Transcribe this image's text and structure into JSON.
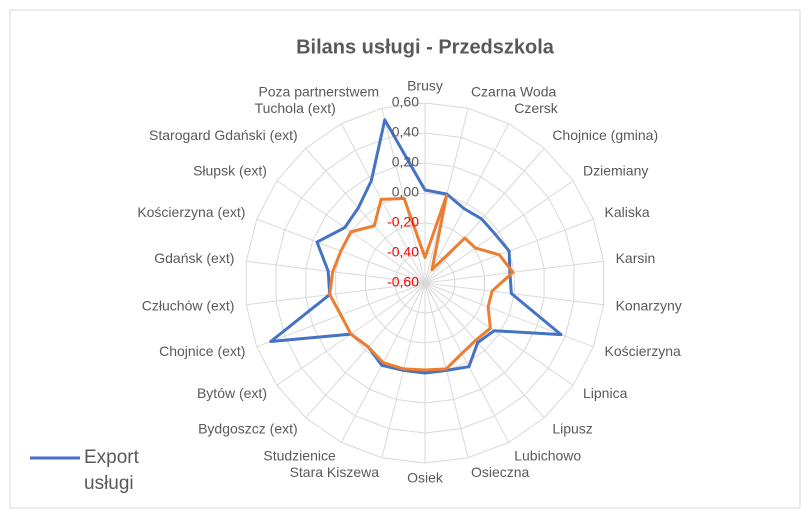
{
  "chart_data": {
    "type": "radar",
    "title": "Bilans usługi - Przedszkola",
    "categories": [
      "Brusy",
      "Czarna Woda",
      "Czersk",
      "Chojnice (gmina)",
      "Dziemiany",
      "Kaliska",
      "Karsin",
      "Konarzyny",
      "Kościerzyna",
      "Lipnica",
      "Lipusz",
      "Lubichowo",
      "Osieczna",
      "Osiek",
      "Stara Kiszewa",
      "Studzienice",
      "Bydgoszcz (ext)",
      "Bytów (ext)",
      "Chojnice (ext)",
      "Człuchów (ext)",
      "Gdańsk (ext)",
      "Kościerzyna (ext)",
      "Słupsk (ext)",
      "Starogard Gdański (ext)",
      "Tuchola (ext)",
      "Poza partnerstwem"
    ],
    "series": [
      {
        "name": "Export usługi",
        "color": "#4472c4",
        "values": [
          0.02,
          0.01,
          -0.04,
          -0.03,
          -0.03,
          0,
          -0.03,
          -0.02,
          0.37,
          -0.04,
          -0.07,
          0.03,
          0,
          0,
          0,
          0.02,
          -0.03,
          0,
          0.5,
          0.04,
          0.05,
          0.17,
          0.05,
          0.07,
          0.17,
          0.52
        ]
      },
      {
        "color": "#ed7d31",
        "values": [
          -0.43,
          0,
          -0.5,
          -0.2,
          -0.19,
          -0.07,
          -0.01,
          -0.15,
          -0.15,
          -0.07,
          -0.09,
          -0.07,
          -0.01,
          -0.02,
          -0.01,
          0,
          -0.03,
          0,
          0,
          0.04,
          0.02,
          0,
          0,
          -0.09,
          0.03,
          -0.02
        ]
      }
    ],
    "ylim": [
      -0.6,
      0.6
    ],
    "yticks": [
      {
        "value": -0.6,
        "label": "-0,60"
      },
      {
        "value": -0.4,
        "label": "-0,40"
      },
      {
        "value": -0.2,
        "label": "-0,20"
      },
      {
        "value": 0,
        "label": "0,00"
      },
      {
        "value": 0.2,
        "label": "0,20"
      },
      {
        "value": 0.4,
        "label": "0,40"
      },
      {
        "value": 0.6,
        "label": "0,60"
      }
    ],
    "negative_tick_color": "#ff0000",
    "grid": true,
    "legend": "bottom-left"
  }
}
